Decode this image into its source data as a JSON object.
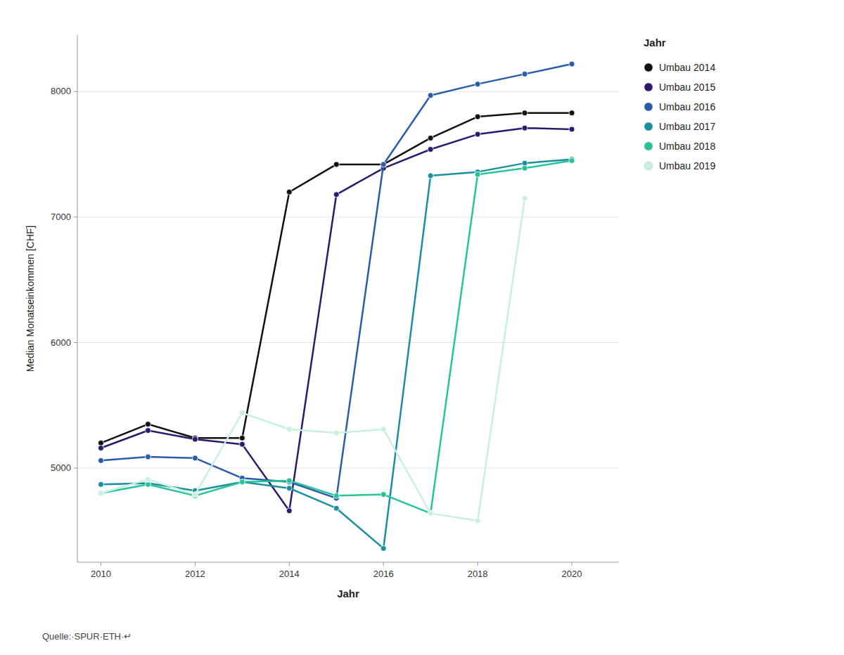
{
  "chart_data": {
    "type": "line",
    "x_label": "Jahr",
    "y_label": "Median Monatseinkommen [CHF]",
    "legend_title": "Jahr",
    "source": "Quelle:·SPUR·ETH·↵",
    "x": [
      2010,
      2011,
      2012,
      2013,
      2014,
      2015,
      2016,
      2017,
      2018,
      2019,
      2020
    ],
    "xlim": [
      2009.5,
      2021.0
    ],
    "xticks": [
      2010,
      2012,
      2014,
      2016,
      2018,
      2020
    ],
    "ylim": [
      4250,
      8450
    ],
    "yticks": [
      5000,
      6000,
      7000,
      8000
    ],
    "grid": true,
    "legend": "right",
    "marker": "circle",
    "series": [
      {
        "name": "Umbau 2014",
        "color": "#111111",
        "values": [
          5200,
          5350,
          5240,
          5240,
          7200,
          7420,
          7420,
          7630,
          7800,
          7830,
          7830
        ]
      },
      {
        "name": "Umbau 2015",
        "color": "#2d1a6e",
        "values": [
          5160,
          5300,
          5230,
          5190,
          4660,
          7180,
          7390,
          7540,
          7660,
          7710,
          7700
        ]
      },
      {
        "name": "Umbau 2016",
        "color": "#2a5ca8",
        "values": [
          5060,
          5090,
          5080,
          4920,
          4890,
          4760,
          7420,
          7970,
          8060,
          8140,
          8220
        ]
      },
      {
        "name": "Umbau 2017",
        "color": "#1a8fa0",
        "values": [
          4870,
          4880,
          4820,
          4890,
          4840,
          4680,
          4360,
          7330,
          7360,
          7430,
          7460
        ]
      },
      {
        "name": "Umbau 2018",
        "color": "#26c496",
        "values": [
          4800,
          4870,
          4780,
          4890,
          4900,
          4780,
          4790,
          4640,
          7340,
          7390,
          7450
        ]
      },
      {
        "name": "Umbau 2019",
        "color": "#c8f0e0",
        "values": [
          4800,
          4910,
          4790,
          5440,
          5310,
          5280,
          5310,
          4640,
          4580,
          7150,
          null
        ]
      }
    ]
  }
}
